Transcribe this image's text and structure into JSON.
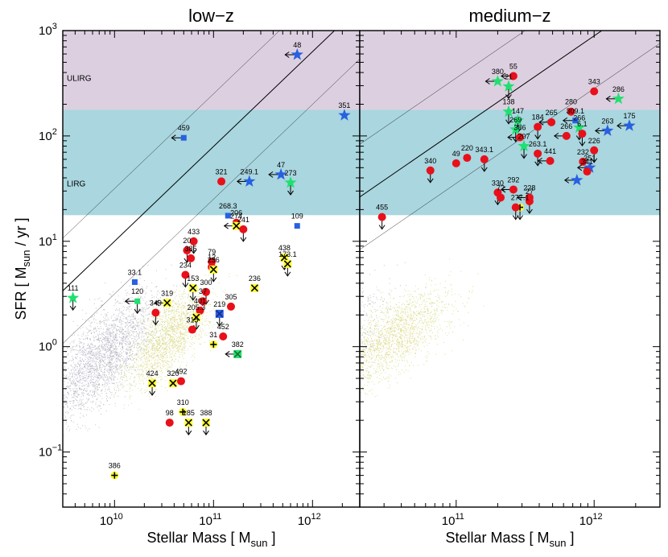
{
  "chart_data": [
    {
      "type": "scatter",
      "title": "low−z",
      "xlabel": "Stellar Mass   [ M",
      "xlabel_sub": "sun",
      "xlabel_end": " ]",
      "ylabel": "SFR   [ M",
      "ylabel_sub": "sun",
      "ylabel_end": " / yr ]",
      "x_scale": "log",
      "y_scale": "log",
      "xlim": [
        3000000000.0,
        3000000000000.0
      ],
      "ylim": [
        0.03,
        1000
      ],
      "x_ticks": [
        {
          "value": 10000000000.0,
          "base": "10",
          "exp": "10"
        },
        {
          "value": 100000000000.0,
          "base": "10",
          "exp": "11"
        },
        {
          "value": 1000000000000.0,
          "base": "10",
          "exp": "12"
        }
      ],
      "y_ticks": [
        {
          "value": 0.1,
          "base": "10",
          "exp": "−1"
        },
        {
          "value": 1,
          "base": "10",
          "exp": "0"
        },
        {
          "value": 10,
          "base": "10",
          "exp": "1"
        },
        {
          "value": 100,
          "base": "10",
          "exp": "2"
        },
        {
          "value": 1000,
          "base": "10",
          "exp": "3"
        }
      ],
      "zones": [
        {
          "label": "ULIRG",
          "y_range": [
            177,
            1000
          ],
          "color": "#dcd0e0"
        },
        {
          "label": "LIRG",
          "y_range": [
            17.7,
            177
          ],
          "color": "#a9d6df"
        }
      ],
      "main_sequence_lines": [
        {
          "offset": 1.0,
          "style": "solid"
        },
        {
          "offset": 0.5,
          "style": "thin"
        },
        {
          "offset": 1.5,
          "style": "thin"
        }
      ],
      "points": [
        {
          "label": "48",
          "x": 700000000000.0,
          "y": 590,
          "marker": "star-blue",
          "upper": false,
          "leftarrow": true
        },
        {
          "label": "351",
          "x": 2100000000000.0,
          "y": 157,
          "marker": "star-blue",
          "upper": false,
          "leftarrow": false
        },
        {
          "label": "459",
          "x": 50000000000.0,
          "y": 96,
          "marker": "square-blue",
          "upper": false,
          "leftarrow": true
        },
        {
          "label": "321",
          "x": 120000000000.0,
          "y": 37,
          "marker": "circle-red",
          "upper": false,
          "leftarrow": false
        },
        {
          "label": "249.1",
          "x": 230000000000.0,
          "y": 37,
          "marker": "star-blue",
          "upper": false,
          "leftarrow": true
        },
        {
          "label": "47",
          "x": 480000000000.0,
          "y": 43,
          "marker": "star-blue",
          "upper": false,
          "leftarrow": true
        },
        {
          "label": "273",
          "x": 600000000000.0,
          "y": 36,
          "marker": "star-green",
          "upper": true,
          "leftarrow": false
        },
        {
          "label": "268.3",
          "x": 140000000000.0,
          "y": 17.5,
          "marker": "square-blue",
          "upper": false,
          "leftarrow": false
        },
        {
          "label": "109",
          "x": 700000000000.0,
          "y": 14,
          "marker": "square-blue",
          "upper": false,
          "leftarrow": false
        },
        {
          "label": "206",
          "x": 170000000000.0,
          "y": 15,
          "marker": "circle-red",
          "upper": false,
          "leftarrow": false
        },
        {
          "label": "274",
          "x": 170000000000.0,
          "y": 14,
          "marker": "cross-yellow",
          "upper": false,
          "leftarrow": true
        },
        {
          "label": "241",
          "x": 200000000000.0,
          "y": 13,
          "marker": "circle-red",
          "upper": true,
          "leftarrow": false
        },
        {
          "label": "433",
          "x": 63000000000.0,
          "y": 10,
          "marker": "circle-red",
          "upper": true,
          "leftarrow": false
        },
        {
          "label": "20",
          "x": 54000000000.0,
          "y": 8.2,
          "marker": "circle-red",
          "upper": true,
          "leftarrow": false
        },
        {
          "label": "385",
          "x": 59000000000.0,
          "y": 6.9,
          "marker": "circle-red",
          "upper": false,
          "leftarrow": false
        },
        {
          "label": "438",
          "x": 520000000000.0,
          "y": 7.0,
          "marker": "cross-yellow",
          "upper": true,
          "leftarrow": false
        },
        {
          "label": "173.1",
          "x": 560000000000.0,
          "y": 6.1,
          "marker": "cross-yellow",
          "upper": true,
          "leftarrow": false
        },
        {
          "label": "79",
          "x": 96000000000.0,
          "y": 6.4,
          "marker": "circle-red",
          "upper": false,
          "leftarrow": false
        },
        {
          "label": "12",
          "x": 96000000000.0,
          "y": 5.7,
          "marker": "circle-red",
          "upper": false,
          "leftarrow": false
        },
        {
          "label": "236",
          "x": 100000000000.0,
          "y": 5.4,
          "marker": "cross-yellow",
          "upper": true,
          "leftarrow": false
        },
        {
          "label": "234",
          "x": 52000000000.0,
          "y": 4.8,
          "marker": "circle-red",
          "upper": true,
          "leftarrow": false
        },
        {
          "label": "33.1",
          "x": 16000000000.0,
          "y": 4.1,
          "marker": "square-blue",
          "upper": false,
          "leftarrow": false
        },
        {
          "label": "153",
          "x": 62000000000.0,
          "y": 3.6,
          "marker": "cross-yellow",
          "upper": true,
          "leftarrow": false
        },
        {
          "label": "300",
          "x": 84000000000.0,
          "y": 3.3,
          "marker": "circle-red",
          "upper": true,
          "leftarrow": false
        },
        {
          "label": "236",
          "x": 260000000000.0,
          "y": 3.6,
          "marker": "cross-yellow",
          "upper": false,
          "leftarrow": false
        },
        {
          "label": "111",
          "x": 3800000000.0,
          "y": 2.9,
          "marker": "star-green",
          "upper": true,
          "leftarrow": false
        },
        {
          "label": "120",
          "x": 17000000000.0,
          "y": 2.7,
          "marker": "square-green",
          "upper": true,
          "leftarrow": true
        },
        {
          "label": "319",
          "x": 34000000000.0,
          "y": 2.6,
          "marker": "cross-yellow",
          "upper": false,
          "leftarrow": true
        },
        {
          "label": "349",
          "x": 26000000000.0,
          "y": 2.1,
          "marker": "circle-red",
          "upper": true,
          "leftarrow": false
        },
        {
          "label": "305",
          "x": 150000000000.0,
          "y": 2.4,
          "marker": "circle-red",
          "upper": false,
          "leftarrow": false
        },
        {
          "label": "37",
          "x": 78000000000.0,
          "y": 2.7,
          "marker": "circle-red",
          "upper": false,
          "leftarrow": false
        },
        {
          "label": "401",
          "x": 73000000000.0,
          "y": 2.2,
          "marker": "circle-red",
          "upper": false,
          "leftarrow": false
        },
        {
          "label": "205.3",
          "x": 67000000000.0,
          "y": 1.9,
          "marker": "cross-yellow",
          "upper": true,
          "leftarrow": false
        },
        {
          "label": "219",
          "x": 115000000000.0,
          "y": 2.05,
          "marker": "cross-blue",
          "upper": true,
          "leftarrow": false
        },
        {
          "label": "315",
          "x": 61000000000.0,
          "y": 1.45,
          "marker": "circle-red",
          "upper": false,
          "leftarrow": false
        },
        {
          "label": "452",
          "x": 125000000000.0,
          "y": 1.25,
          "marker": "circle-red",
          "upper": false,
          "leftarrow": false
        },
        {
          "label": "31",
          "x": 100000000000.0,
          "y": 1.05,
          "marker": "plus-yellow",
          "upper": false,
          "leftarrow": false
        },
        {
          "label": "382",
          "x": 175000000000.0,
          "y": 0.85,
          "marker": "cross-green",
          "upper": false,
          "leftarrow": true
        },
        {
          "label": "424",
          "x": 24000000000.0,
          "y": 0.45,
          "marker": "cross-yellow",
          "upper": true,
          "leftarrow": false
        },
        {
          "label": "320",
          "x": 39000000000.0,
          "y": 0.45,
          "marker": "cross-yellow",
          "upper": false,
          "leftarrow": false
        },
        {
          "label": "492",
          "x": 47000000000.0,
          "y": 0.47,
          "marker": "circle-red",
          "upper": false,
          "leftarrow": false
        },
        {
          "label": "310",
          "x": 49000000000.0,
          "y": 0.24,
          "marker": "plus-yellow",
          "upper": false,
          "leftarrow": false
        },
        {
          "label": "98",
          "x": 36000000000.0,
          "y": 0.19,
          "marker": "circle-red",
          "upper": false,
          "leftarrow": false
        },
        {
          "label": "185",
          "x": 56000000000.0,
          "y": 0.19,
          "marker": "cross-yellow",
          "upper": true,
          "leftarrow": false
        },
        {
          "label": "388",
          "x": 84000000000.0,
          "y": 0.19,
          "marker": "cross-yellow",
          "upper": true,
          "leftarrow": false
        },
        {
          "label": "386",
          "x": 10000000000.0,
          "y": 0.06,
          "marker": "plus-yellow",
          "upper": false,
          "leftarrow": false
        }
      ]
    },
    {
      "type": "scatter",
      "title": "medium−z",
      "xlabel": "Stellar Mass   [ M",
      "xlabel_sub": "sun",
      "xlabel_end": " ]",
      "x_scale": "log",
      "y_scale": "log",
      "xlim": [
        20000000000.0,
        3000000000000.0
      ],
      "ylim": [
        0.03,
        1000
      ],
      "x_ticks": [
        {
          "value": 100000000000.0,
          "base": "10",
          "exp": "11"
        },
        {
          "value": 1000000000000.0,
          "base": "10",
          "exp": "12"
        }
      ],
      "zones": [
        {
          "label": "",
          "y_range": [
            177,
            1000
          ],
          "color": "#dcd0e0"
        },
        {
          "label": "",
          "y_range": [
            17.7,
            177
          ],
          "color": "#a9d6df"
        }
      ],
      "main_sequence_lines": [
        {
          "offset": 1.0,
          "style": "solid"
        },
        {
          "offset": 0.5,
          "style": "thin"
        },
        {
          "offset": 1.5,
          "style": "thin"
        }
      ],
      "points": [
        {
          "label": "55",
          "x": 260000000000.0,
          "y": 370,
          "marker": "circle-red",
          "upper": false,
          "leftarrow": true
        },
        {
          "label": "380",
          "x": 200000000000.0,
          "y": 330,
          "marker": "star-green",
          "upper": false,
          "leftarrow": true
        },
        {
          "label": "21",
          "x": 240000000000.0,
          "y": 295,
          "marker": "star-green",
          "upper": true,
          "leftarrow": false
        },
        {
          "label": "343",
          "x": 1000000000000.0,
          "y": 265,
          "marker": "circle-red",
          "upper": false,
          "leftarrow": false
        },
        {
          "label": "286",
          "x": 1500000000000.0,
          "y": 225,
          "marker": "star-green",
          "upper": false,
          "leftarrow": true
        },
        {
          "label": "138",
          "x": 240000000000.0,
          "y": 170,
          "marker": "star-green",
          "upper": true,
          "leftarrow": false
        },
        {
          "label": "280",
          "x": 680000000000.0,
          "y": 170,
          "marker": "circle-red",
          "upper": false,
          "leftarrow": false
        },
        {
          "label": "147",
          "x": 280000000000.0,
          "y": 140,
          "marker": "star-green",
          "upper": true,
          "leftarrow": false
        },
        {
          "label": "265",
          "x": 490000000000.0,
          "y": 135,
          "marker": "circle-red",
          "upper": false,
          "leftarrow": true
        },
        {
          "label": "309.1",
          "x": 730000000000.0,
          "y": 140,
          "marker": "square-blue",
          "upper": false,
          "leftarrow": true
        },
        {
          "label": "175",
          "x": 1800000000000.0,
          "y": 125,
          "marker": "star-blue",
          "upper": false,
          "leftarrow": true
        },
        {
          "label": "184",
          "x": 390000000000.0,
          "y": 122,
          "marker": "circle-red",
          "upper": true,
          "leftarrow": false
        },
        {
          "label": "269",
          "x": 270000000000.0,
          "y": 115,
          "marker": "star-green",
          "upper": true,
          "leftarrow": false
        },
        {
          "label": "266",
          "x": 780000000000.0,
          "y": 120,
          "marker": "star-green",
          "upper": true,
          "leftarrow": false
        },
        {
          "label": "263",
          "x": 1250000000000.0,
          "y": 112,
          "marker": "star-blue",
          "upper": false,
          "leftarrow": true
        },
        {
          "label": "386",
          "x": 290000000000.0,
          "y": 97,
          "marker": "circle-red",
          "upper": false,
          "leftarrow": true
        },
        {
          "label": "6.1",
          "x": 820000000000.0,
          "y": 105,
          "marker": "circle-red",
          "upper": true,
          "leftarrow": false
        },
        {
          "label": "266",
          "x": 630000000000.0,
          "y": 100,
          "marker": "circle-red",
          "upper": false,
          "leftarrow": true
        },
        {
          "label": "207",
          "x": 310000000000.0,
          "y": 80,
          "marker": "star-green",
          "upper": true,
          "leftarrow": false
        },
        {
          "label": "226",
          "x": 1000000000000.0,
          "y": 73,
          "marker": "circle-red",
          "upper": true,
          "leftarrow": false
        },
        {
          "label": "220",
          "x": 120000000000.0,
          "y": 62,
          "marker": "circle-red",
          "upper": false,
          "leftarrow": false
        },
        {
          "label": "49",
          "x": 100000000000.0,
          "y": 55,
          "marker": "circle-red",
          "upper": false,
          "leftarrow": false
        },
        {
          "label": "343.1",
          "x": 160000000000.0,
          "y": 60,
          "marker": "circle-red",
          "upper": true,
          "leftarrow": false
        },
        {
          "label": "263.1",
          "x": 390000000000.0,
          "y": 68,
          "marker": "circle-red",
          "upper": true,
          "leftarrow": false
        },
        {
          "label": "232",
          "x": 830000000000.0,
          "y": 57,
          "marker": "circle-red",
          "upper": false,
          "leftarrow": false
        },
        {
          "label": "441",
          "x": 480000000000.0,
          "y": 58,
          "marker": "circle-red",
          "upper": false,
          "leftarrow": true
        },
        {
          "label": "351",
          "x": 930000000000.0,
          "y": 50,
          "marker": "star-blue",
          "upper": false,
          "leftarrow": true
        },
        {
          "label": "340",
          "x": 65000000000.0,
          "y": 47,
          "marker": "circle-red",
          "upper": true,
          "leftarrow": false
        },
        {
          "label": "341",
          "x": 890000000000.0,
          "y": 46,
          "marker": "circle-red",
          "upper": false,
          "leftarrow": false
        },
        {
          "label": "",
          "x": 750000000000.0,
          "y": 38,
          "marker": "star-blue",
          "upper": false,
          "leftarrow": true
        },
        {
          "label": "292",
          "x": 260000000000.0,
          "y": 31,
          "marker": "circle-red",
          "upper": false,
          "leftarrow": true
        },
        {
          "label": "330",
          "x": 200000000000.0,
          "y": 29,
          "marker": "circle-red",
          "upper": true,
          "leftarrow": false
        },
        {
          "label": "72",
          "x": 210000000000.0,
          "y": 26,
          "marker": "circle-red",
          "upper": false,
          "leftarrow": false
        },
        {
          "label": "228",
          "x": 340000000000.0,
          "y": 26,
          "marker": "circle-red",
          "upper": false,
          "leftarrow": true
        },
        {
          "label": "27",
          "x": 340000000000.0,
          "y": 24,
          "marker": "circle-red",
          "upper": true,
          "leftarrow": false
        },
        {
          "label": "277.1",
          "x": 290000000000.0,
          "y": 21,
          "marker": "plus-yellow",
          "upper": true,
          "leftarrow": false
        },
        {
          "label": "",
          "x": 270000000000.0,
          "y": 21,
          "marker": "circle-red",
          "upper": true,
          "leftarrow": false
        },
        {
          "label": "455",
          "x": 29000000000.0,
          "y": 17,
          "marker": "circle-red",
          "upper": true,
          "leftarrow": false
        }
      ]
    }
  ],
  "colors": {
    "red": "#e8101a",
    "blue": "#2860e0",
    "green": "#20e070",
    "yellow": "#ffff33",
    "darkgreen": "#1a6e2a",
    "darkblue": "#1a2a8c",
    "ulirg": "#dcd0e0",
    "lirg": "#a9d6df",
    "cloud_grey": "#a8a8b8",
    "cloud_yellow": "#d8d880"
  }
}
